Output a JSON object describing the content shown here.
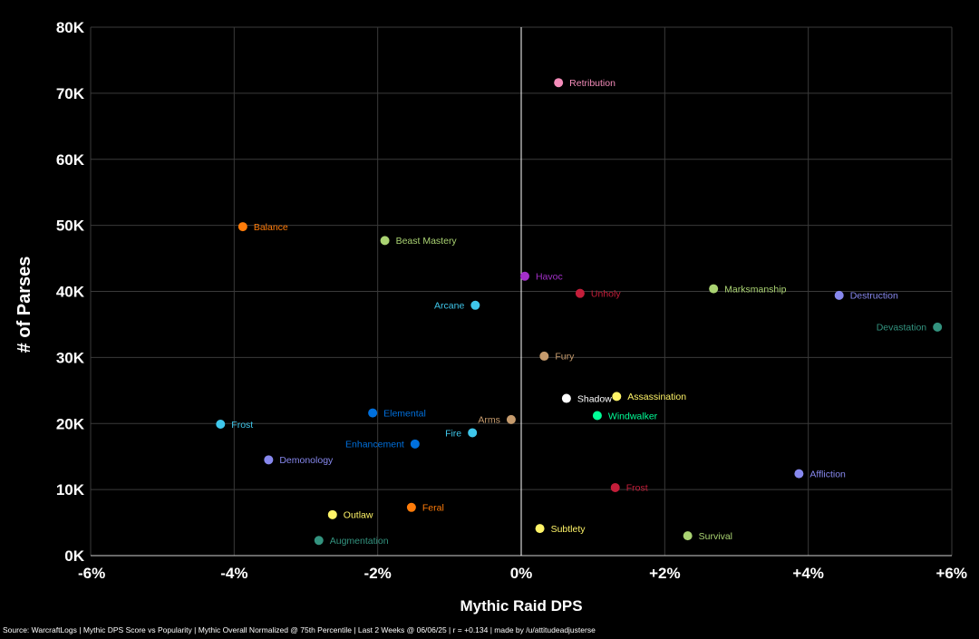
{
  "chart_data": {
    "type": "scatter",
    "title": "",
    "xlabel": "Mythic Raid DPS",
    "ylabel": "# of Parses",
    "xlim": [
      -6,
      6
    ],
    "ylim": [
      0,
      80000
    ],
    "x_ticks": [
      -6,
      -4,
      -2,
      0,
      2,
      4,
      6
    ],
    "x_tick_labels": [
      "-6%",
      "-4%",
      "-2%",
      "0%",
      "+2%",
      "+4%",
      "+6%"
    ],
    "y_ticks": [
      0,
      10000,
      20000,
      30000,
      40000,
      50000,
      60000,
      70000,
      80000
    ],
    "y_tick_labels": [
      "0K",
      "10K",
      "20K",
      "30K",
      "40K",
      "50K",
      "60K",
      "70K",
      "80K"
    ],
    "grid": true,
    "points": [
      {
        "label": "Retribution",
        "x": 0.52,
        "y": 71600,
        "color": "#f48cba",
        "side": "right"
      },
      {
        "label": "Balance",
        "x": -3.88,
        "y": 49800,
        "color": "#ff7c0a",
        "side": "right"
      },
      {
        "label": "Beast Mastery",
        "x": -1.9,
        "y": 47700,
        "color": "#aad372",
        "side": "right"
      },
      {
        "label": "Havoc",
        "x": 0.05,
        "y": 42300,
        "color": "#a330c9",
        "side": "right"
      },
      {
        "label": "Unholy",
        "x": 0.82,
        "y": 39700,
        "color": "#c41e3a",
        "side": "right"
      },
      {
        "label": "Marksmanship",
        "x": 2.68,
        "y": 40400,
        "color": "#aad372",
        "side": "right"
      },
      {
        "label": "Destruction",
        "x": 4.43,
        "y": 39400,
        "color": "#8788ee",
        "side": "right"
      },
      {
        "label": "Arcane",
        "x": -0.64,
        "y": 37900,
        "color": "#3fc7eb",
        "side": "left"
      },
      {
        "label": "Devastation",
        "x": 5.8,
        "y": 34600,
        "color": "#33937f",
        "side": "left"
      },
      {
        "label": "Fury",
        "x": 0.32,
        "y": 30200,
        "color": "#c69b6d",
        "side": "right"
      },
      {
        "label": "Shadow",
        "x": 0.63,
        "y": 23800,
        "color": "#ffffff",
        "side": "right"
      },
      {
        "label": "Assassination",
        "x": 1.33,
        "y": 24100,
        "color": "#fff468",
        "side": "right"
      },
      {
        "label": "Windwalker",
        "x": 1.06,
        "y": 21200,
        "color": "#00ff98",
        "side": "right"
      },
      {
        "label": "Elemental",
        "x": -2.07,
        "y": 21600,
        "color": "#0070dd",
        "side": "right"
      },
      {
        "label": "Arms",
        "x": -0.14,
        "y": 20600,
        "color": "#c69b6d",
        "side": "left"
      },
      {
        "label": "Frost",
        "x": -4.19,
        "y": 19900,
        "color": "#3fc7eb",
        "side": "right"
      },
      {
        "label": "Fire",
        "x": -0.68,
        "y": 18600,
        "color": "#3fc7eb",
        "side": "left"
      },
      {
        "label": "Enhancement",
        "x": -1.48,
        "y": 16900,
        "color": "#0070dd",
        "side": "left"
      },
      {
        "label": "Demonology",
        "x": -3.52,
        "y": 14500,
        "color": "#8788ee",
        "side": "right"
      },
      {
        "label": "Affliction",
        "x": 3.87,
        "y": 12400,
        "color": "#8788ee",
        "side": "right"
      },
      {
        "label": "Frost",
        "x": 1.31,
        "y": 10300,
        "color": "#c41e3a",
        "side": "right"
      },
      {
        "label": "Feral",
        "x": -1.53,
        "y": 7300,
        "color": "#ff7c0a",
        "side": "right"
      },
      {
        "label": "Outlaw",
        "x": -2.63,
        "y": 6200,
        "color": "#fff468",
        "side": "right"
      },
      {
        "label": "Subtlety",
        "x": 0.26,
        "y": 4100,
        "color": "#fff468",
        "side": "right"
      },
      {
        "label": "Survival",
        "x": 2.32,
        "y": 3000,
        "color": "#aad372",
        "side": "right"
      },
      {
        "label": "Augmentation",
        "x": -2.82,
        "y": 2300,
        "color": "#33937f",
        "side": "right"
      }
    ]
  },
  "source_text": "Source: WarcraftLogs | Mythic DPS Score vs Popularity | Mythic Overall Normalized @ 75th Percentile | Last 2 Weeks @ 06/06/25 | r = +0.134 | made by /u/attitudeadjusterse"
}
